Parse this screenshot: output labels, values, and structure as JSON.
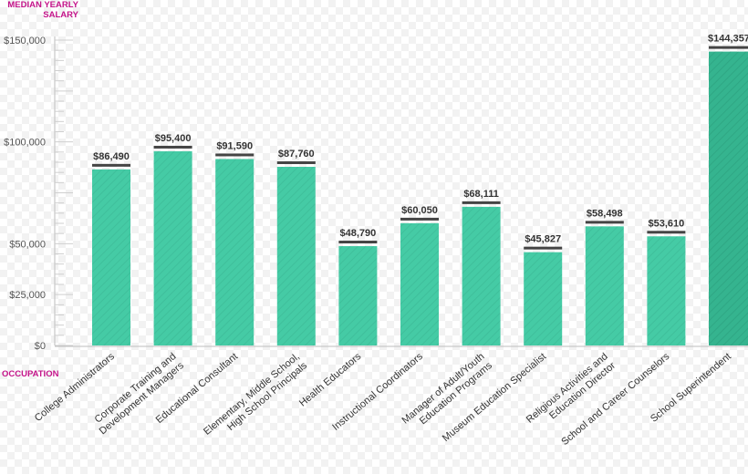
{
  "chart_data": {
    "type": "bar",
    "ylabel": [
      "MEDIAN YEARLY",
      "SALARY"
    ],
    "xlabel": "OCCUPATION",
    "ylim": [
      0,
      150000
    ],
    "yticks": [
      {
        "value": 0,
        "label": "$0"
      },
      {
        "value": 25000,
        "label": "$25,000"
      },
      {
        "value": 50000,
        "label": "$50,000"
      },
      {
        "value": 100000,
        "label": "$100,000"
      },
      {
        "value": 150000,
        "label": "$150,000"
      }
    ],
    "categories": [
      [
        "College Administrators"
      ],
      [
        "Corporate Training and",
        "Development Managers"
      ],
      [
        "Educational Consultant"
      ],
      [
        "Elementary, Middle School,",
        "High School Principals"
      ],
      [
        "Health Educators"
      ],
      [
        "Instructional Coordinators"
      ],
      [
        "Manager of Adult/Youth",
        "Education Programs"
      ],
      [
        "Museum Education Specialist"
      ],
      [
        "Religious Activities and",
        "Education Director"
      ],
      [
        "School and Career Counselors"
      ],
      [
        "School Superintendent"
      ]
    ],
    "values": [
      86490,
      95400,
      91590,
      87760,
      48790,
      60050,
      68111,
      45827,
      58498,
      53610,
      144357
    ],
    "value_labels": [
      "$86,490",
      "$95,400",
      "$91,590",
      "$87,760",
      "$48,790",
      "$60,050",
      "$68,111",
      "$45,827",
      "$58,498",
      "$53,610",
      "$144,357"
    ],
    "colors": {
      "bar": "#45cba5",
      "bar_highlight": "#35b48f",
      "cap": "#444444",
      "axis_title": "#c4148a"
    },
    "grid": false,
    "legend": "none"
  }
}
